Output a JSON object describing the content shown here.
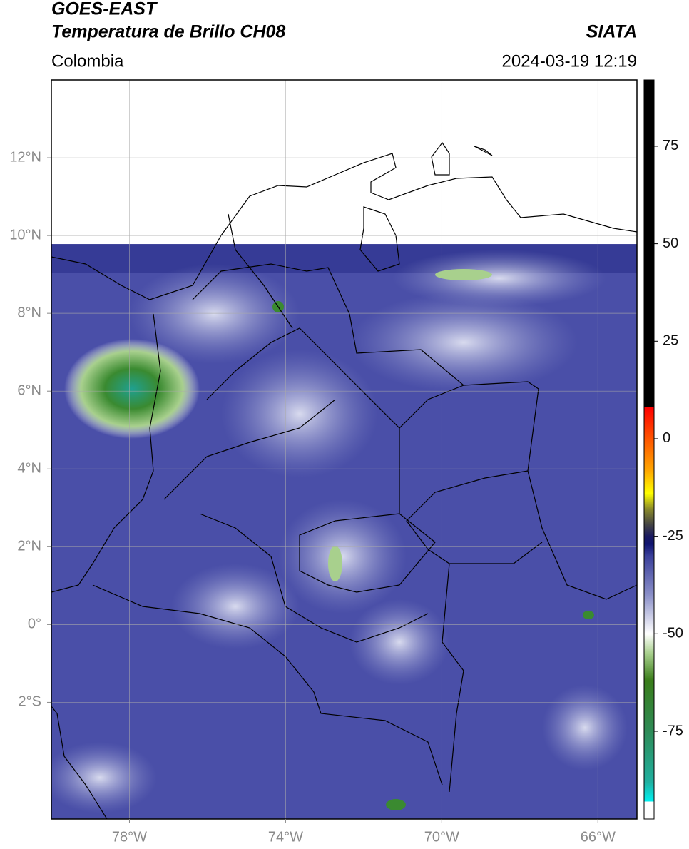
{
  "header": {
    "title": "GOES-EAST",
    "subtitle": "Temperatura de Brillo CH08",
    "source": "SIATA",
    "region": "Colombia",
    "datetime": "2024-03-19 12:19"
  },
  "map": {
    "xlim": [
      -80,
      -65
    ],
    "ylim": [
      -5,
      14
    ],
    "data_top": 9.78,
    "grid": true,
    "xticks": [
      {
        "value": -78,
        "label": "78°W"
      },
      {
        "value": -74,
        "label": "74°W"
      },
      {
        "value": -70,
        "label": "70°W"
      },
      {
        "value": -66,
        "label": "66°W"
      }
    ],
    "yticks": [
      {
        "value": 12,
        "label": "12°N"
      },
      {
        "value": 10,
        "label": "10°N"
      },
      {
        "value": 8,
        "label": "8°N"
      },
      {
        "value": 6,
        "label": "6°N"
      },
      {
        "value": 4,
        "label": "4°N"
      },
      {
        "value": 2,
        "label": "2°N"
      },
      {
        "value": 0,
        "label": "0°"
      },
      {
        "value": -2,
        "label": "2°S"
      }
    ]
  },
  "colorbar": {
    "lim": [
      -97.5,
      92
    ],
    "ticks": [
      75,
      50,
      25,
      0,
      -25,
      -50,
      -75
    ],
    "stops": [
      {
        "value": -97.5,
        "color": "#ffffff"
      },
      {
        "value": -93,
        "color": "#ffffff"
      },
      {
        "value": -93,
        "color": "#00f0f0"
      },
      {
        "value": -88,
        "color": "#20b0a0"
      },
      {
        "value": -75,
        "color": "#2e8b57"
      },
      {
        "value": -62,
        "color": "#3a7d1a"
      },
      {
        "value": -55,
        "color": "#a8d08d"
      },
      {
        "value": -50,
        "color": "#ffffff"
      },
      {
        "value": -40,
        "color": "#8a8fc8"
      },
      {
        "value": -30,
        "color": "#3a3f9a"
      },
      {
        "value": -27,
        "color": "#101470"
      },
      {
        "value": -25,
        "color": "#1a1a60"
      },
      {
        "value": -22,
        "color": "#444444"
      },
      {
        "value": -18,
        "color": "#8a8a2a"
      },
      {
        "value": -14,
        "color": "#ffff00"
      },
      {
        "value": -8,
        "color": "#ffa500"
      },
      {
        "value": 0,
        "color": "#ff5500"
      },
      {
        "value": 8,
        "color": "#ff0000"
      },
      {
        "value": 8,
        "color": "#000000"
      },
      {
        "value": 92,
        "color": "#000000"
      }
    ]
  }
}
